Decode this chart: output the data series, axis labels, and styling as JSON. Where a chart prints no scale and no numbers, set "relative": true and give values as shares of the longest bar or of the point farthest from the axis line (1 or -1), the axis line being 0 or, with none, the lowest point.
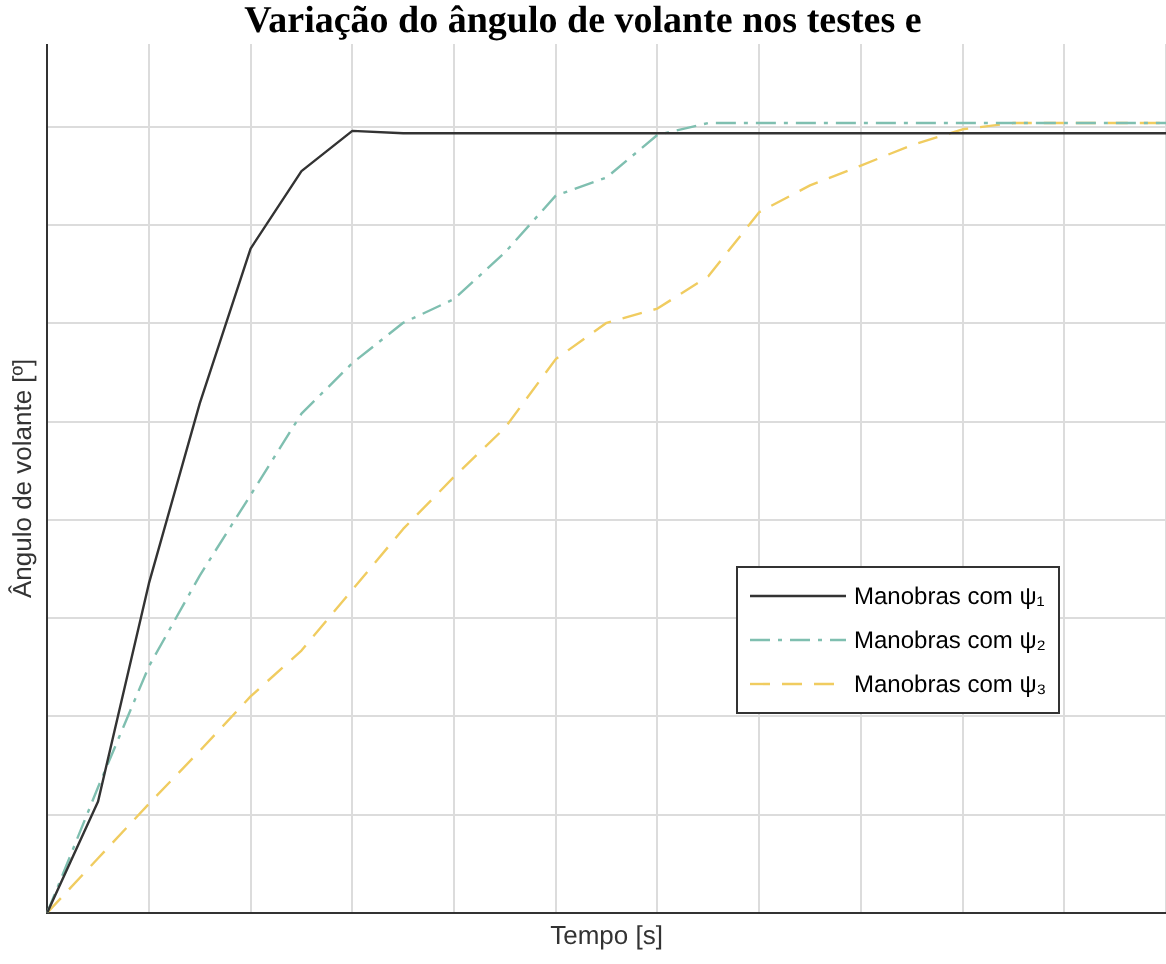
{
  "chart_data": {
    "type": "line",
    "title": "Variação do ângulo de volante nos testes e",
    "xlabel": "Tempo [s]",
    "ylabel": "Ângulo de volante [º]",
    "relative": true,
    "grid": true,
    "tick_labels": false,
    "legend": "right",
    "marker": "none",
    "categories": [
      null,
      null,
      null,
      null,
      null,
      null,
      null,
      null,
      null,
      null,
      null,
      null,
      null,
      null,
      null,
      null,
      null,
      null,
      null,
      null,
      null,
      null,
      null
    ],
    "series": [
      {
        "name": "Manobras com ψ₁",
        "color": "#333333",
        "line_style": "solid",
        "values": [
          0,
          0.141,
          0.417,
          0.645,
          0.841,
          0.939,
          0.99,
          0.987,
          0.987,
          0.987,
          0.987,
          0.987,
          0.987,
          0.987,
          0.987,
          0.987,
          0.987,
          0.987,
          0.987,
          0.987,
          0.987,
          0.987,
          0.987
        ]
      },
      {
        "name": "Manobras com ψ₂",
        "color": "#7fbfb0",
        "line_style": "dashdot",
        "values": [
          0,
          0.159,
          0.312,
          0.427,
          0.529,
          0.632,
          0.696,
          0.747,
          0.777,
          0.836,
          0.908,
          0.931,
          0.985,
          1,
          1,
          1,
          1,
          1,
          1,
          1,
          1,
          1,
          1
        ]
      },
      {
        "name": "Manobras com ψ₃",
        "color": "#f0cc60",
        "line_style": "dashed",
        "values": [
          0,
          0.069,
          0.138,
          0.205,
          0.274,
          0.332,
          0.409,
          0.486,
          0.552,
          0.614,
          0.701,
          0.747,
          0.765,
          0.806,
          0.887,
          0.921,
          0.946,
          0.972,
          0.992,
          1,
          1,
          1,
          1
        ]
      }
    ]
  }
}
